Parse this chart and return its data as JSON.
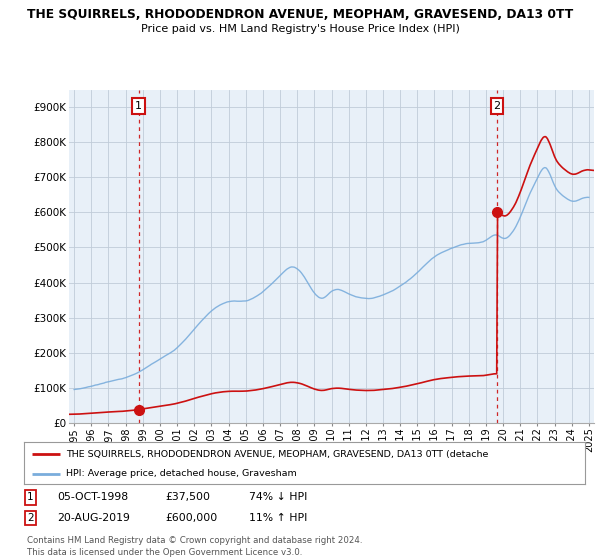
{
  "title": "THE SQUIRRELS, RHODODENDRON AVENUE, MEOPHAM, GRAVESEND, DA13 0TT",
  "subtitle": "Price paid vs. HM Land Registry's House Price Index (HPI)",
  "ylim": [
    0,
    950000
  ],
  "yticks": [
    0,
    100000,
    200000,
    300000,
    400000,
    500000,
    600000,
    700000,
    800000,
    900000
  ],
  "ytick_labels": [
    "£0",
    "£100K",
    "£200K",
    "£300K",
    "£400K",
    "£500K",
    "£600K",
    "£700K",
    "£800K",
    "£900K"
  ],
  "background_color": "#ffffff",
  "chart_bg_color": "#e8f0f8",
  "grid_color": "#c0ccd8",
  "hpi_color": "#7aaddc",
  "price_color": "#cc1111",
  "marker1_x": 1998.76,
  "marker1_y": 37500,
  "marker2_x": 2019.64,
  "marker2_y": 600000,
  "legend1_text": "THE SQUIRRELS, RHODODENDRON AVENUE, MEOPHAM, GRAVESEND, DA13 0TT (detache",
  "legend2_text": "HPI: Average price, detached house, Gravesham",
  "footnote": "Contains HM Land Registry data © Crown copyright and database right 2024.\nThis data is licensed under the Open Government Licence v3.0.",
  "xlim_start": 1994.7,
  "xlim_end": 2025.3,
  "xticks": [
    1995,
    1996,
    1997,
    1998,
    1999,
    2000,
    2001,
    2002,
    2003,
    2004,
    2005,
    2006,
    2007,
    2008,
    2009,
    2010,
    2011,
    2012,
    2013,
    2014,
    2015,
    2016,
    2017,
    2018,
    2019,
    2020,
    2021,
    2022,
    2023,
    2024,
    2025
  ]
}
